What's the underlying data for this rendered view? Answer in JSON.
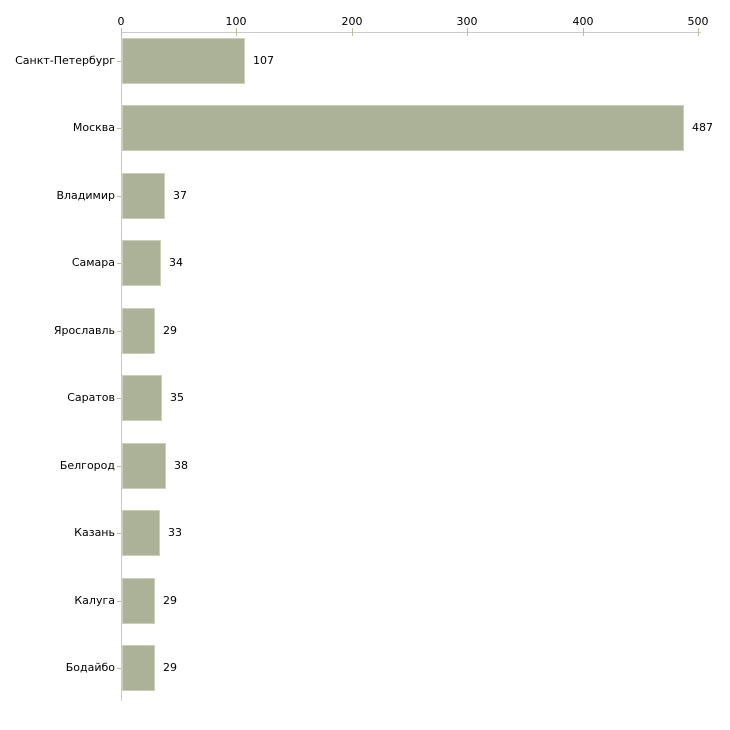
{
  "chart_data": {
    "type": "bar",
    "orientation": "horizontal",
    "title": "",
    "categories": [
      "Санкт-Петербург",
      "Москва",
      "Владимир",
      "Самара",
      "Ярославль",
      "Саратов",
      "Белгород",
      "Казань",
      "Калуга",
      "Бодайбо"
    ],
    "values": [
      107,
      487,
      37,
      34,
      29,
      35,
      38,
      33,
      29,
      29
    ],
    "x_ticks": [
      0,
      100,
      200,
      300,
      400,
      500
    ],
    "xlim": [
      0,
      500
    ],
    "axis_position": "top",
    "grid": false,
    "legend": false,
    "value_labels_shown": true,
    "colors": {
      "bar_fill": "#acb298",
      "bar_edge": "#ccd0bb",
      "axis_line": "#c9c9c9",
      "tick_mark": "#bdbd98",
      "text": "#000000",
      "background": "#ffffff"
    }
  }
}
